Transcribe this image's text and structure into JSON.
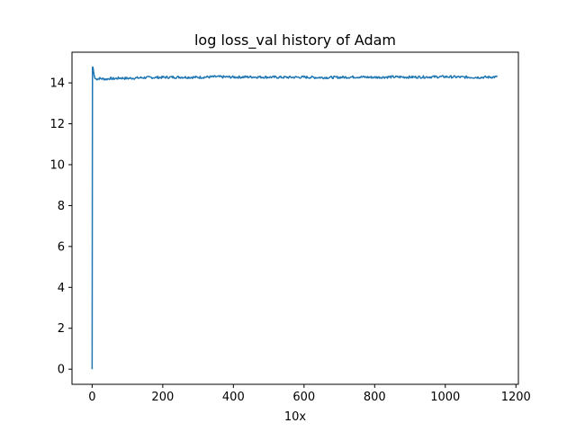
{
  "chart_data": {
    "type": "line",
    "title": "log loss_val history of Adam",
    "xlabel": "10x",
    "ylabel": "",
    "xlim": [
      -57,
      1207
    ],
    "ylim": [
      -0.74,
      15.5
    ],
    "xticks": [
      0,
      200,
      400,
      600,
      800,
      1000,
      1200
    ],
    "yticks": [
      0,
      2,
      4,
      6,
      8,
      10,
      12,
      14
    ],
    "grid": false,
    "series": [
      {
        "color": "#1f77b4",
        "x": [
          0,
          1,
          2,
          3,
          4,
          6,
          8,
          10,
          15,
          20,
          30,
          40,
          50,
          60,
          80,
          100,
          150,
          200,
          250,
          300,
          350,
          400,
          450,
          500,
          550,
          600,
          650,
          700,
          750,
          800,
          850,
          900,
          950,
          1000,
          1050,
          1100,
          1147
        ],
        "y": [
          0.0,
          14.75,
          14.78,
          14.7,
          14.55,
          14.35,
          14.22,
          14.2,
          14.19,
          14.22,
          14.2,
          14.18,
          14.22,
          14.2,
          14.24,
          14.22,
          14.26,
          14.27,
          14.28,
          14.27,
          14.3,
          14.28,
          14.29,
          14.28,
          14.27,
          14.28,
          14.26,
          14.27,
          14.29,
          14.27,
          14.29,
          14.28,
          14.29,
          14.3,
          14.28,
          14.27,
          14.29
        ]
      }
    ]
  }
}
